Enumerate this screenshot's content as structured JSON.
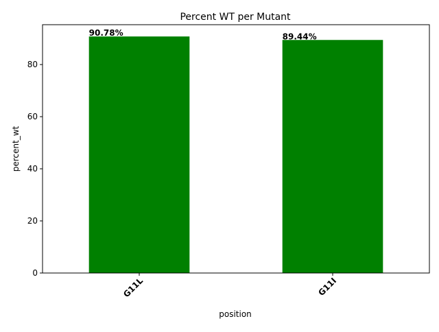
{
  "chart_data": {
    "type": "bar",
    "title": "Percent WT per Mutant",
    "xlabel": "position",
    "ylabel": "percent_wt",
    "categories": [
      "G11L",
      "G11I"
    ],
    "values": [
      90.78,
      89.44
    ],
    "data_labels": [
      "90.78%",
      "89.44%"
    ],
    "yticks": [
      0,
      20,
      40,
      60,
      80
    ],
    "ylim": [
      0,
      95.3
    ],
    "bar_color": "#008000",
    "grid": false,
    "legend": "none",
    "xtick_rotation": 45
  }
}
